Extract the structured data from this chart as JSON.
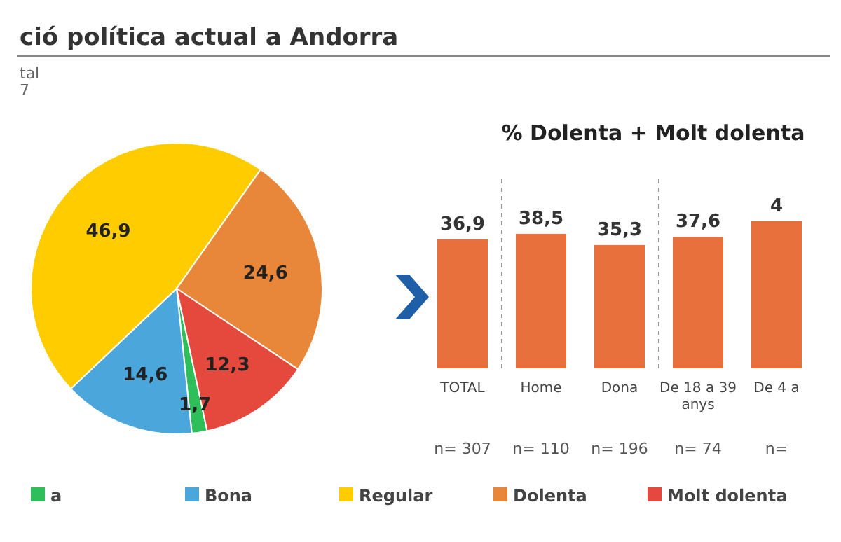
{
  "chart_data": [
    {
      "type": "pie",
      "title": "ció política actual a Andorra",
      "annotations": [
        "tal",
        "7"
      ],
      "categories": [
        "a",
        "Bona",
        "Regular",
        "Dolenta",
        "Molt dolenta"
      ],
      "values": [
        1.7,
        14.6,
        46.9,
        24.6,
        12.3
      ],
      "colors": [
        "#2fbf5a",
        "#4ba6dc",
        "#ffcc00",
        "#e8873a",
        "#e5483c"
      ],
      "value_labels": [
        "1,7",
        "14,6",
        "46,9",
        "24,6",
        "12,3"
      ],
      "legend": "bottom"
    },
    {
      "type": "bar",
      "title": "% Dolenta + Molt dolenta",
      "categories": [
        "TOTAL",
        "Home",
        "Dona",
        "De 18 a 39 anys",
        "De 4 a"
      ],
      "values": [
        36.9,
        38.5,
        35.3,
        37.6,
        42.1
      ],
      "color": "#e8703c",
      "value_labels": [
        "36,9",
        "38,5",
        "35,3",
        "37,6",
        null
      ],
      "tick_labels": "x",
      "annotations": [
        {
          "text": "4",
          "x": "De 4 a",
          "y": 42.1
        },
        "n= 307",
        "n= 110",
        "n= 196",
        "n= 74",
        "n="
      ]
    }
  ]
}
